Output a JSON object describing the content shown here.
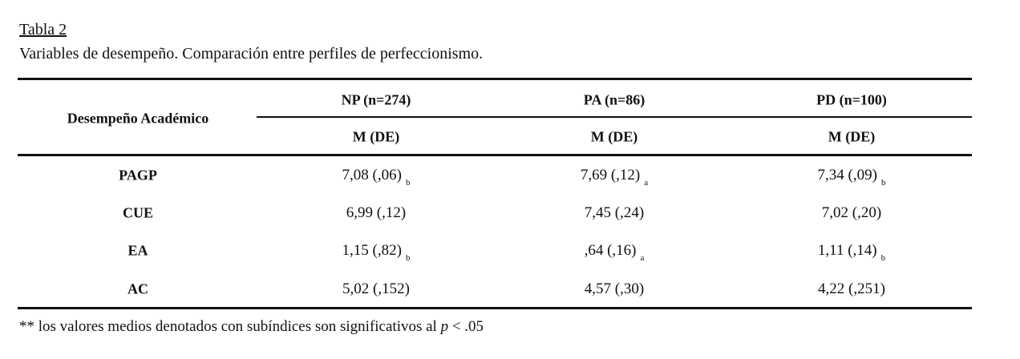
{
  "title": "Tabla 2",
  "subtitle": "Variables de desempeño. Comparación entre perfiles de perfeccionismo.",
  "table": {
    "row_header": "Desempeño Académico",
    "groups": [
      "NP (n=274)",
      "PA (n=86)",
      "PD (n=100)"
    ],
    "subheaders": [
      "M (DE)",
      "M (DE)",
      "M (DE)"
    ],
    "rows": [
      {
        "label": "PAGP",
        "cells": [
          {
            "text": "7,08 (,06)",
            "sub": "b"
          },
          {
            "text": "7,69 (,12)",
            "sub": "a"
          },
          {
            "text": "7,34 (,09)",
            "sub": "b"
          }
        ]
      },
      {
        "label": "CUE",
        "cells": [
          {
            "text": "6,99 (,12)"
          },
          {
            "text": "7,45 (,24)"
          },
          {
            "text": "7,02 (,20)"
          }
        ]
      },
      {
        "label": "EA",
        "cells": [
          {
            "text": "1,15 (,82)",
            "sub": "b"
          },
          {
            "text": ",64 (,16)",
            "sub": "a"
          },
          {
            "text": "1,11 (,14)",
            "sub": "b"
          }
        ]
      },
      {
        "label": "AC",
        "cells": [
          {
            "text": "5,02 (,152)"
          },
          {
            "text": "4,57 (,30)"
          },
          {
            "text": "4,22 (,251)"
          }
        ]
      }
    ]
  },
  "note": {
    "before": "** los valores medios denotados con subíndices son significativos al ",
    "italic": "p",
    "after": " < .05"
  }
}
